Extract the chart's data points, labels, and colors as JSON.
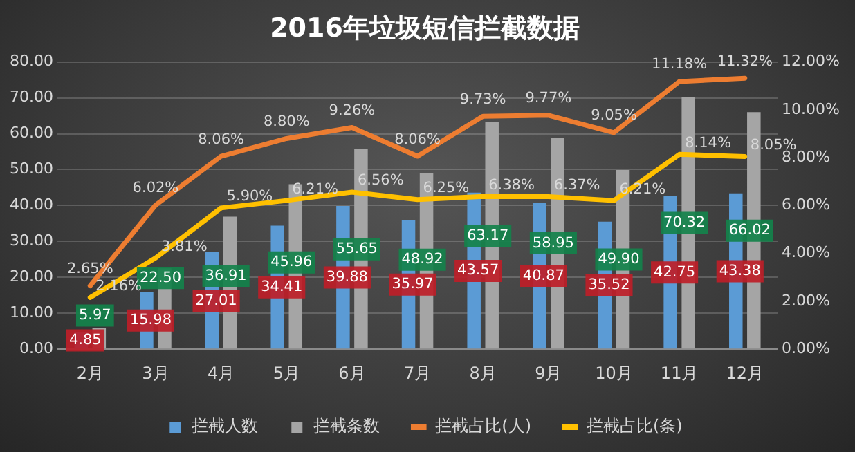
{
  "chart_data": {
    "type": "bar",
    "title": "2016年垃圾短信拦截数据",
    "categories": [
      "2月",
      "3月",
      "4月",
      "5月",
      "6月",
      "7月",
      "8月",
      "9月",
      "10月",
      "11月",
      "12月"
    ],
    "series": [
      {
        "name": "拦截人数",
        "color": "#5b9bd5",
        "values": [
          4.85,
          15.98,
          27.01,
          34.41,
          39.88,
          35.97,
          43.57,
          40.87,
          35.52,
          42.75,
          43.38
        ],
        "value_labels": [
          "4.85",
          "15.98",
          "27.01",
          "34.41",
          "39.88",
          "35.97",
          "43.57",
          "40.87",
          "35.52",
          "42.75",
          "43.38"
        ]
      },
      {
        "name": "拦截条数",
        "color": "#a5a5a5",
        "values": [
          5.97,
          22.5,
          36.91,
          45.96,
          55.65,
          48.92,
          63.17,
          58.95,
          49.9,
          70.32,
          66.02
        ],
        "value_labels": [
          "5.97",
          "22.50",
          "36.91",
          "45.96",
          "55.65",
          "48.92",
          "63.17",
          "58.95",
          "49.90",
          "70.32",
          "66.02"
        ]
      },
      {
        "name": "拦截占比(人)",
        "type": "line",
        "axis": "y2",
        "color": "#ed7d31",
        "values": [
          2.65,
          6.02,
          8.06,
          8.8,
          9.26,
          8.06,
          9.73,
          9.77,
          9.05,
          11.18,
          11.32
        ],
        "value_labels": [
          "2.65%",
          "6.02%",
          "8.06%",
          "8.80%",
          "9.26%",
          "8.06%",
          "9.73%",
          "9.77%",
          "9.05%",
          "11.18%",
          "11.32%"
        ]
      },
      {
        "name": "拦截占比(条)",
        "type": "line",
        "axis": "y2",
        "color": "#ffc000",
        "values": [
          2.16,
          3.81,
          5.9,
          6.21,
          6.56,
          6.25,
          6.38,
          6.37,
          6.21,
          8.14,
          8.05
        ],
        "value_labels": [
          "2.16%",
          "3.81%",
          "5.90%",
          "6.21%",
          "6.56%",
          "6.25%",
          "6.38%",
          "6.37%",
          "6.21%",
          "8.14%",
          "8.05%"
        ]
      }
    ],
    "ylim": [
      0,
      80
    ],
    "yticks": [
      {
        "value": 0,
        "label": "0.00"
      },
      {
        "value": 10,
        "label": "10.00"
      },
      {
        "value": 20,
        "label": "20.00"
      },
      {
        "value": 30,
        "label": "30.00"
      },
      {
        "value": 40,
        "label": "40.00"
      },
      {
        "value": 50,
        "label": "50.00"
      },
      {
        "value": 60,
        "label": "60.00"
      },
      {
        "value": 70,
        "label": "70.00"
      },
      {
        "value": 80,
        "label": "80.00"
      }
    ],
    "y2lim": [
      0,
      12
    ],
    "y2ticks": [
      {
        "value": 0,
        "label": "0.00%"
      },
      {
        "value": 2,
        "label": "2.00%"
      },
      {
        "value": 4,
        "label": "4.00%"
      },
      {
        "value": 6,
        "label": "6.00%"
      },
      {
        "value": 8,
        "label": "8.00%"
      },
      {
        "value": 10,
        "label": "10.00%"
      },
      {
        "value": 12,
        "label": "12.00%"
      }
    ],
    "grid": "y",
    "legend": "bottom",
    "marker": "none",
    "line_style": "solid"
  }
}
